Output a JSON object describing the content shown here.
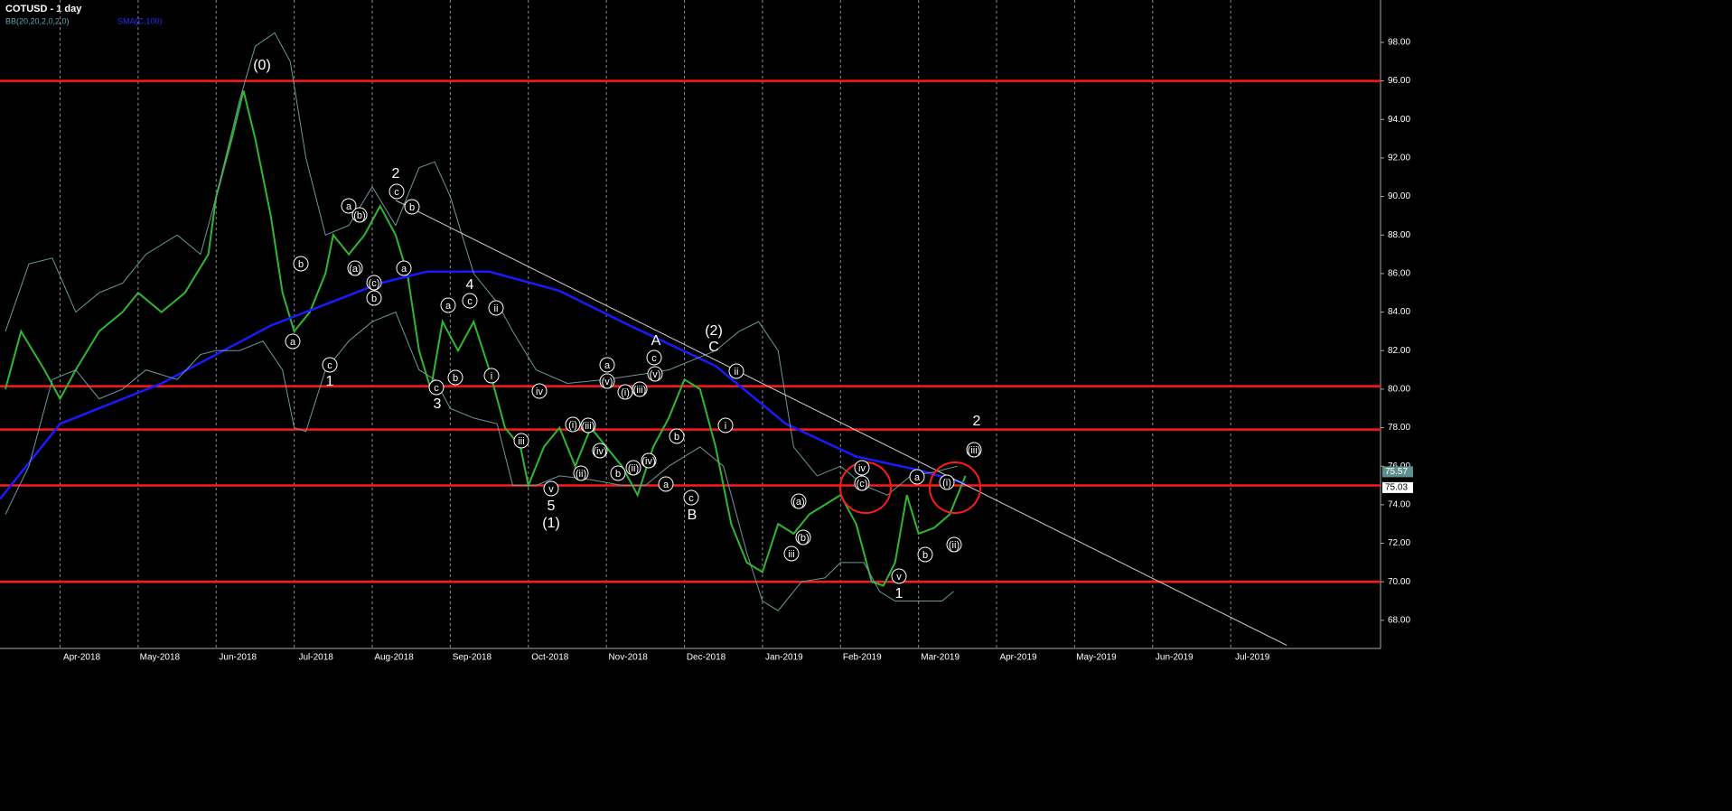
{
  "chart_data": {
    "type": "line",
    "title": "COTUSD - 1 day",
    "xlim": [
      0.23,
      17.92
    ],
    "ylim": [
      66.54,
      100.2
    ],
    "xticks": [
      {
        "value": 1,
        "label": "Apr-2018"
      },
      {
        "value": 2,
        "label": "May-2018"
      },
      {
        "value": 3,
        "label": "Jun-2018"
      },
      {
        "value": 4,
        "label": "Jul-2018"
      },
      {
        "value": 5,
        "label": "Aug-2018"
      },
      {
        "value": 6,
        "label": "Sep-2018"
      },
      {
        "value": 7,
        "label": "Oct-2018"
      },
      {
        "value": 8,
        "label": "Nov-2018"
      },
      {
        "value": 9,
        "label": "Dec-2018"
      },
      {
        "value": 10,
        "label": "Jan-2019"
      },
      {
        "value": 11,
        "label": "Feb-2019"
      },
      {
        "value": 12,
        "label": "Mar-2019"
      },
      {
        "value": 13,
        "label": "Apr-2019"
      },
      {
        "value": 14,
        "label": "May-2019"
      },
      {
        "value": 15,
        "label": "Jun-2019"
      },
      {
        "value": 16,
        "label": "Jul-2019"
      }
    ],
    "yticks": [
      {
        "value": 68,
        "label": "68.00"
      },
      {
        "value": 70,
        "label": "70.00"
      },
      {
        "value": 72,
        "label": "72.00"
      },
      {
        "value": 74,
        "label": "74.00"
      },
      {
        "value": 76,
        "label": "76.00"
      },
      {
        "value": 78,
        "label": "78.00"
      },
      {
        "value": 80,
        "label": "80.00"
      },
      {
        "value": 82,
        "label": "82.00"
      },
      {
        "value": 84,
        "label": "84.00"
      },
      {
        "value": 86,
        "label": "86.00"
      },
      {
        "value": 88,
        "label": "88.00"
      },
      {
        "value": 90,
        "label": "90.00"
      },
      {
        "value": 92,
        "label": "92.00"
      },
      {
        "value": 94,
        "label": "94.00"
      },
      {
        "value": 96,
        "label": "96.00"
      },
      {
        "value": 98,
        "label": "98.00"
      }
    ],
    "grid": true,
    "series": [
      {
        "color": "#2fb82f",
        "x": [
          0.3,
          0.5,
          0.8,
          1.0,
          1.2,
          1.5,
          1.8,
          2.0,
          2.3,
          2.6,
          2.9,
          3.0,
          3.2,
          3.35,
          3.5,
          3.7,
          3.85,
          4.0,
          4.2,
          4.4,
          4.5,
          4.7,
          4.9,
          5.1,
          5.3,
          5.45,
          5.6,
          5.75,
          5.9,
          6.1,
          6.3,
          6.5,
          6.7,
          6.9,
          7.0,
          7.2,
          7.4,
          7.6,
          7.8,
          8.0,
          8.2,
          8.4,
          8.6,
          8.8,
          9.0,
          9.2,
          9.4,
          9.6,
          9.8,
          10.0,
          10.2,
          10.4,
          10.6,
          10.8,
          11.0,
          11.2,
          11.4,
          11.55,
          11.7,
          11.85,
          12.0,
          12.2,
          12.4,
          12.6
        ],
        "values": [
          80,
          83,
          81,
          79.5,
          81,
          83,
          84,
          85,
          84,
          85,
          87,
          90,
          93,
          95.5,
          93,
          89,
          85,
          83,
          84,
          86,
          88,
          87,
          88,
          89.5,
          88,
          86,
          82,
          80,
          83.5,
          82,
          83.5,
          81,
          78,
          77,
          75,
          77,
          78,
          76,
          78,
          77,
          76,
          74.5,
          77,
          78.5,
          80.5,
          80,
          77,
          73,
          71,
          70.5,
          73,
          72.5,
          73.5,
          74,
          74.5,
          73,
          70,
          69.8,
          71,
          74.5,
          72.5,
          72.8,
          73.5,
          75.5
        ]
      },
      {
        "name": "SMA(C,100)",
        "color": "#1a1aff",
        "x": [
          0.23,
          1.0,
          2.3,
          3.7,
          5.1,
          5.7,
          6.5,
          7.4,
          8.3,
          9.4,
          10.3,
          11.2,
          12.0,
          12.6
        ],
        "values": [
          74.3,
          78.2,
          80.3,
          83.3,
          85.5,
          86.1,
          86.1,
          85.1,
          83.3,
          81.2,
          78.2,
          76.5,
          75.8,
          75.1
        ]
      },
      {
        "name": "BB(20,20,2,0,2,0)",
        "color": "#6a9a9a",
        "x": [
          0.3,
          0.6,
          0.9,
          1.2,
          1.5,
          1.8,
          2.1,
          2.5,
          2.8,
          3.0,
          3.3,
          3.5,
          3.75,
          3.95,
          4.15,
          4.4,
          4.7,
          5.0,
          5.3,
          5.6,
          5.8,
          6.0,
          6.3,
          6.6,
          6.8,
          7.1,
          7.5,
          8.0,
          8.5,
          8.8,
          9.1,
          9.4,
          9.7,
          9.95,
          10.2,
          10.4,
          10.7,
          11.0,
          11.3,
          11.6,
          11.9,
          12.2,
          12.5
        ],
        "values": [
          83,
          86.5,
          86.8,
          84,
          85,
          85.5,
          87,
          88,
          87,
          90,
          95,
          97.8,
          98.5,
          97,
          92,
          88,
          88.5,
          90.5,
          88.5,
          91.5,
          91.8,
          90,
          86,
          84.5,
          83,
          81,
          80.3,
          80.5,
          80.8,
          81,
          81.5,
          82,
          83,
          83.5,
          82,
          77,
          75.5,
          76,
          75,
          74.5,
          75.5,
          75.7,
          76
        ]
      },
      {
        "color": "#6a9a9a",
        "x": [
          0.3,
          0.6,
          0.9,
          1.2,
          1.5,
          1.8,
          2.1,
          2.5,
          2.8,
          3.0,
          3.3,
          3.6,
          3.85,
          4.0,
          4.15,
          4.4,
          4.7,
          5.0,
          5.3,
          5.6,
          5.8,
          6.0,
          6.3,
          6.6,
          6.8,
          7.1,
          7.4,
          7.8,
          8.2,
          8.5,
          8.8,
          9.2,
          9.5,
          9.8,
          10.0,
          10.2,
          10.5,
          10.8,
          11.0,
          11.3,
          11.5,
          11.7,
          12.0,
          12.3,
          12.45
        ],
        "values": [
          73.5,
          76,
          80.5,
          81,
          79.5,
          80,
          81,
          80.5,
          81.8,
          82,
          82,
          82.5,
          81,
          78,
          77.8,
          81,
          82.5,
          83.5,
          84,
          81,
          80.5,
          79,
          78.5,
          78.2,
          75,
          75,
          75.5,
          75.3,
          75,
          75,
          76,
          77,
          76,
          71.5,
          69,
          68.5,
          70,
          70.2,
          71,
          71,
          69.5,
          69,
          69,
          69,
          69.5
        ]
      }
    ],
    "levels": {
      "color": "#ff1a1a",
      "values": [
        96,
        80.15,
        77.9,
        75.0,
        70.0
      ]
    },
    "trendline": {
      "color": "#d0d0d0",
      "x": [
        5.3,
        16.72
      ],
      "values": [
        89.8,
        66.7
      ]
    },
    "price_tags": [
      {
        "value": 75.57,
        "label": "75.57"
      },
      {
        "value": 75.03,
        "label": "75.03"
      }
    ],
    "annotations": [
      "(0)",
      "2",
      "c",
      "b",
      "a",
      "(b)",
      "b",
      "(a)",
      "a",
      "(c)",
      "b",
      "a",
      "c",
      "1",
      "4",
      "a",
      "c",
      "ii",
      "c",
      "b",
      "i",
      "3",
      "iv",
      "iii",
      "v",
      "5",
      "(1)",
      "(i)",
      "(iii)",
      "(ii)",
      "(iv)",
      "a",
      "(v)",
      "(i)",
      "(iii)",
      "b",
      "(ii)",
      "(iv)",
      "a",
      "b",
      "c",
      "B",
      "A",
      "c",
      "(v)",
      "(2)",
      "C",
      "ii",
      "i",
      "(a)",
      "(b)",
      "iii",
      "iv",
      "(c)",
      "a",
      "(i)",
      "b",
      "(ii)",
      "v",
      "1",
      "2",
      "(iii)"
    ]
  }
}
